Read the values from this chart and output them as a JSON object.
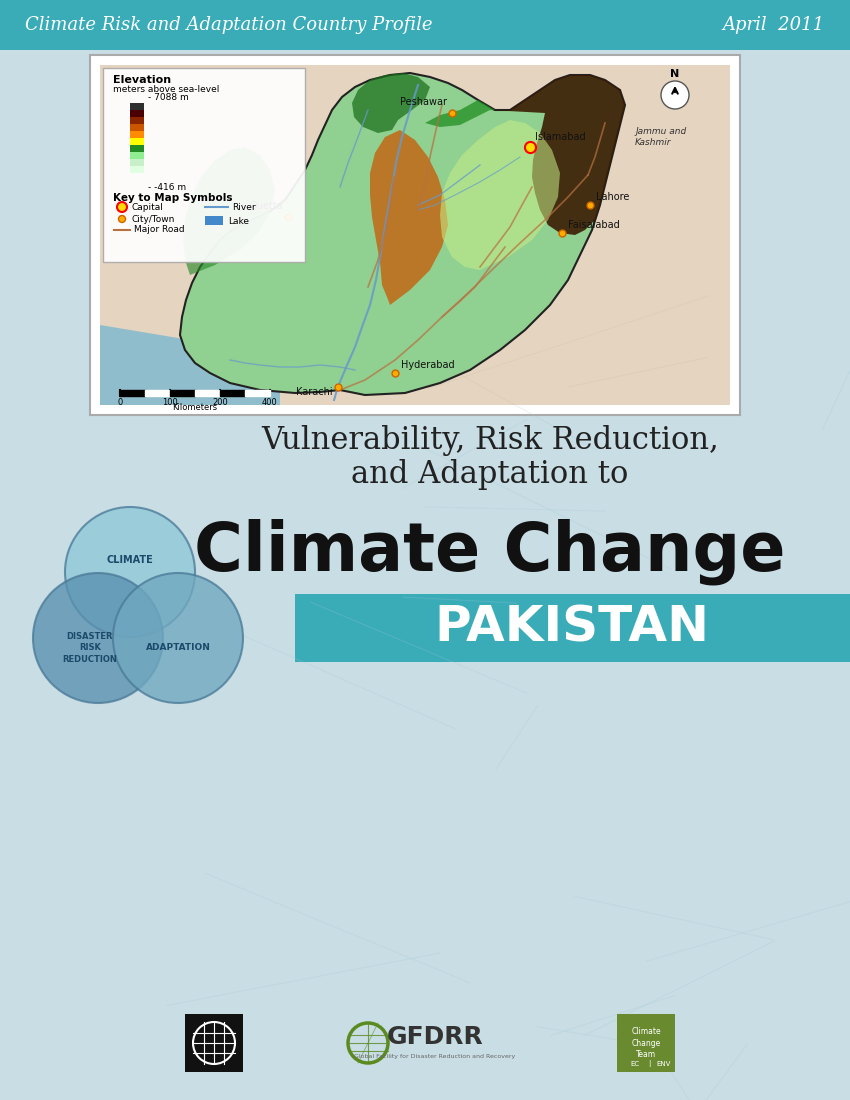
{
  "header_color": "#3aacb8",
  "header_text": "Climate Risk and Adaptation Country Profile",
  "header_date": "April  2011",
  "header_fontsize": 13,
  "bg_color": "#c8dde4",
  "title_line1": "Vulnerability, Risk Reduction,",
  "title_line2": "and Adaptation to",
  "title_line3": "Climate Change",
  "country_name": "PAKISTAN",
  "country_banner_color": "#3aacb8",
  "subtitle_fontsize": 22,
  "climate_change_fontsize": 48,
  "pakistan_fontsize": 36,
  "circle_colors": [
    "#8fc8d8",
    "#5a90b0",
    "#70a8c0"
  ],
  "circle_labels": [
    "CLIMATE",
    "DISASTER\nRISK\nREDUCTION",
    "ADAPTATION"
  ],
  "elevation_colors": [
    "#e0ffe0",
    "#c8f0c8",
    "#90ee90",
    "#228b22",
    "#ffff00",
    "#ff8c00",
    "#cc5500",
    "#8b2500",
    "#4a0000",
    "#2f2f2f"
  ],
  "map_frame_color": "#ffffff",
  "map_border_color": "#888888"
}
